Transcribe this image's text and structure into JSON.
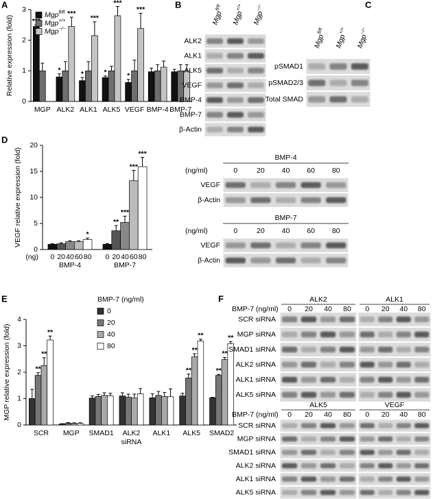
{
  "chart_data": [
    {
      "type": "bar",
      "panel": "A",
      "y_label": "Relative expression (fold)",
      "categories": [
        "MGP",
        "ALK2",
        "ALK1",
        "ALK5",
        "VEGF",
        "BMP-4",
        "BMP-7"
      ],
      "ylim": [
        0,
        3
      ],
      "yticks": [
        0,
        1,
        2,
        3
      ],
      "legend": "upper-left",
      "series": [
        {
          "name": "Mgp",
          "name_sup": "fl/fl",
          "color": "#111111",
          "values": [
            2.45,
            0.8,
            0.68,
            0.78,
            0.62,
            0.97,
            0.97
          ],
          "errors": [
            0.05,
            0.1,
            0.1,
            0.05,
            0.1,
            0.12,
            0.08
          ],
          "significance": [
            "***",
            "*",
            "*",
            "*",
            "*",
            null,
            null
          ]
        },
        {
          "name": "Mgp",
          "name_sup": "+/+",
          "color": "#6e6e6e",
          "values": [
            1.0,
            1.0,
            1.0,
            1.0,
            1.0,
            1.0,
            1.0
          ],
          "errors": [
            0.25,
            0.3,
            0.3,
            0.15,
            0.35,
            0.2,
            0.2
          ],
          "significance": [
            null,
            null,
            null,
            null,
            null,
            null,
            null
          ]
        },
        {
          "name": "Mgp",
          "name_sup": "−/−",
          "color": "#c4c4c4",
          "values": [
            null,
            2.45,
            2.15,
            2.8,
            2.38,
            1.12,
            1.0
          ],
          "errors": [
            null,
            0.3,
            0.45,
            0.3,
            0.5,
            0.2,
            0.2
          ],
          "significance": [
            null,
            "***",
            "***",
            "***",
            "***",
            null,
            null
          ]
        }
      ]
    },
    {
      "type": "bar",
      "panel": "D",
      "y_label": "VEGF relative expression (fold)",
      "x_label": "(ng)",
      "categories": [
        "BMP-4",
        "BMP-7"
      ],
      "ylim": [
        0,
        20
      ],
      "yticks": [
        0,
        5,
        10,
        15,
        20
      ],
      "series_labels_below": true,
      "series": [
        {
          "name": "0",
          "color": "#111111",
          "values": [
            1.0,
            1.0
          ],
          "errors": [
            0.1,
            0.15
          ],
          "significance": [
            null,
            null
          ]
        },
        {
          "name": "20",
          "color": "#555555",
          "values": [
            1.1,
            3.6
          ],
          "errors": [
            0.2,
            1.0
          ],
          "significance": [
            null,
            "**"
          ]
        },
        {
          "name": "40",
          "color": "#888888",
          "values": [
            1.5,
            5.2
          ],
          "errors": [
            0.2,
            1.2
          ],
          "significance": [
            null,
            "***"
          ]
        },
        {
          "name": "60",
          "color": "#bbbbbb",
          "values": [
            1.5,
            13.2
          ],
          "errors": [
            0.2,
            2.0
          ],
          "significance": [
            null,
            "***"
          ]
        },
        {
          "name": "80",
          "color": "#ffffff",
          "values": [
            1.9,
            15.9
          ],
          "errors": [
            0.3,
            1.8
          ],
          "significance": [
            "*",
            "***"
          ]
        }
      ]
    },
    {
      "type": "bar",
      "panel": "E",
      "y_label": "MGP relative expression (fold)",
      "x_label": "siRNA",
      "categories": [
        "SCR",
        "MGP",
        "SMAD1",
        "ALK2",
        "ALK1",
        "ALK5",
        "SMAD2"
      ],
      "ylim": [
        0,
        4
      ],
      "yticks": [
        0,
        1,
        2,
        3,
        4
      ],
      "legend": "upper-center",
      "legend_title": "BMP-7 (ng/ml)",
      "series": [
        {
          "name": "0",
          "color": "#333333",
          "values": [
            1.0,
            0.04,
            1.02,
            1.1,
            1.03,
            1.1,
            1.03
          ],
          "errors": [
            0.35,
            0.01,
            0.08,
            0.12,
            0.15,
            0.1,
            0.02
          ],
          "significance": [
            null,
            null,
            null,
            null,
            null,
            null,
            null
          ]
        },
        {
          "name": "20",
          "color": "#777777",
          "values": [
            1.88,
            0.07,
            1.08,
            1.05,
            1.12,
            1.78,
            1.88
          ],
          "errors": [
            0.1,
            0.02,
            0.08,
            0.12,
            0.15,
            0.15,
            0.04
          ],
          "significance": [
            "**",
            null,
            null,
            null,
            null,
            "**",
            "**"
          ]
        },
        {
          "name": "40",
          "color": "#aaaaaa",
          "values": [
            2.25,
            0.06,
            1.12,
            1.02,
            1.08,
            2.58,
            2.48
          ],
          "errors": [
            0.3,
            0.02,
            0.1,
            0.15,
            0.15,
            0.12,
            0.08
          ],
          "significance": [
            "**",
            null,
            null,
            null,
            null,
            "**",
            "**"
          ]
        },
        {
          "name": "80",
          "color": "#ffffff",
          "values": [
            3.22,
            0.06,
            1.1,
            1.18,
            1.07,
            3.18,
            3.08
          ],
          "errors": [
            0.15,
            0.02,
            0.1,
            0.2,
            0.3,
            0.07,
            0.08
          ],
          "significance": [
            "**",
            null,
            null,
            null,
            null,
            "**",
            "**"
          ]
        }
      ]
    }
  ],
  "blots": [
    {
      "panel": "B",
      "lanes": [
        {
          "name": "Mgp",
          "sup": "fl/fl"
        },
        {
          "name": "Mgp",
          "sup": "+/+"
        },
        {
          "name": "Mgp",
          "sup": "−/−"
        }
      ],
      "rows": [
        "ALK2",
        "ALK1",
        "ALK5",
        "VEGF",
        "BMP-4",
        "BMP-7",
        "β-Actin"
      ]
    },
    {
      "panel": "C",
      "lanes": [
        {
          "name": "Mgp",
          "sup": "fl/fl"
        },
        {
          "name": "Mgp",
          "sup": "+/+"
        },
        {
          "name": "Mgp",
          "sup": "−/−"
        }
      ],
      "rows": [
        "pSMAD1",
        "pSMAD2/3",
        "Total SMAD"
      ]
    },
    {
      "dose_label": "(ng/ml)",
      "groups": [
        {
          "title": "BMP-4",
          "doses": [
            "0",
            "20",
            "40",
            "60",
            "80"
          ],
          "rows": [
            "VEGF",
            "β-Actin"
          ]
        },
        {
          "title": "BMP-7",
          "doses": [
            "0",
            "20",
            "40",
            "60",
            "80"
          ],
          "rows": [
            "VEGF",
            "β-Actin"
          ]
        }
      ]
    },
    {
      "panel": "F",
      "dose_label": "BMP-7 (ng/ml)",
      "rows": [
        "SCR siRNA",
        "MGP siRNA",
        "SMAD1 siRNA",
        "ALK2 siRNA",
        "ALK1 siRNA",
        "ALK5 siRNA"
      ],
      "groups": [
        [
          {
            "title": "ALK2",
            "doses": [
              "0",
              "20",
              "40",
              "80"
            ]
          },
          {
            "title": "ALK1",
            "doses": [
              "0",
              "20",
              "40",
              "80"
            ]
          }
        ],
        [
          {
            "title": "ALK5",
            "doses": [
              "0",
              "20",
              "40",
              "80"
            ]
          },
          {
            "title": "VEGF",
            "doses": [
              "0",
              "20",
              "40",
              "80"
            ]
          }
        ]
      ]
    }
  ]
}
